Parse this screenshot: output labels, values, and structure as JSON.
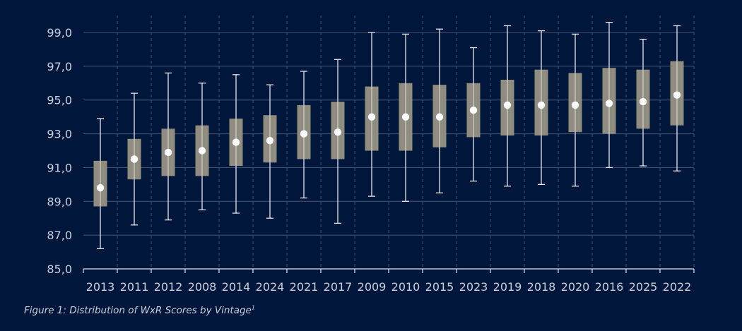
{
  "colors": {
    "background": "#00163a",
    "grid": "#4a5878",
    "box": "#908d80",
    "whisker": "#e8e8e8",
    "median": "#ffffff",
    "text": "#c9cfdb"
  },
  "caption": {
    "text": "Figure 1: Distribution of WxR Scores by Vintage",
    "footnote_mark": "1"
  },
  "chart_data": {
    "type": "box",
    "title": "",
    "xlabel": "",
    "ylabel": "",
    "ylim": [
      85,
      100
    ],
    "yticks": [
      85,
      87,
      89,
      91,
      93,
      95,
      97,
      99
    ],
    "ytick_labels": [
      "85,0",
      "87,0",
      "89,0",
      "91,0",
      "93,0",
      "95,0",
      "97,0",
      "99,0"
    ],
    "grid": "horizontal solid, vertical dashed",
    "categories": [
      "2013",
      "2011",
      "2012",
      "2008",
      "2014",
      "2024",
      "2021",
      "2017",
      "2009",
      "2010",
      "2015",
      "2023",
      "2019",
      "2018",
      "2020",
      "2016",
      "2025",
      "2022"
    ],
    "whisker_low": [
      86.2,
      87.6,
      87.9,
      88.5,
      88.3,
      88.0,
      89.2,
      87.7,
      89.3,
      89.0,
      89.5,
      90.2,
      89.9,
      90.0,
      89.9,
      91.0,
      91.1,
      90.8
    ],
    "q1": [
      88.7,
      90.3,
      90.5,
      90.5,
      91.1,
      91.3,
      91.5,
      91.5,
      92.0,
      92.0,
      92.2,
      92.8,
      92.9,
      92.9,
      93.1,
      93.0,
      93.3,
      93.5
    ],
    "median": [
      89.8,
      91.5,
      91.9,
      92.0,
      92.5,
      92.6,
      93.0,
      93.1,
      94.0,
      94.0,
      94.0,
      94.4,
      94.7,
      94.7,
      94.7,
      94.8,
      94.9,
      95.3
    ],
    "q3": [
      91.4,
      92.7,
      93.3,
      93.5,
      93.9,
      94.1,
      94.7,
      94.9,
      95.8,
      96.0,
      95.9,
      96.0,
      96.2,
      96.8,
      96.6,
      96.9,
      96.8,
      97.3
    ],
    "whisker_high": [
      93.9,
      95.4,
      96.6,
      96.0,
      96.5,
      95.9,
      96.7,
      97.4,
      99.0,
      98.9,
      99.2,
      98.1,
      99.4,
      99.1,
      98.9,
      99.6,
      98.6,
      99.4
    ]
  }
}
